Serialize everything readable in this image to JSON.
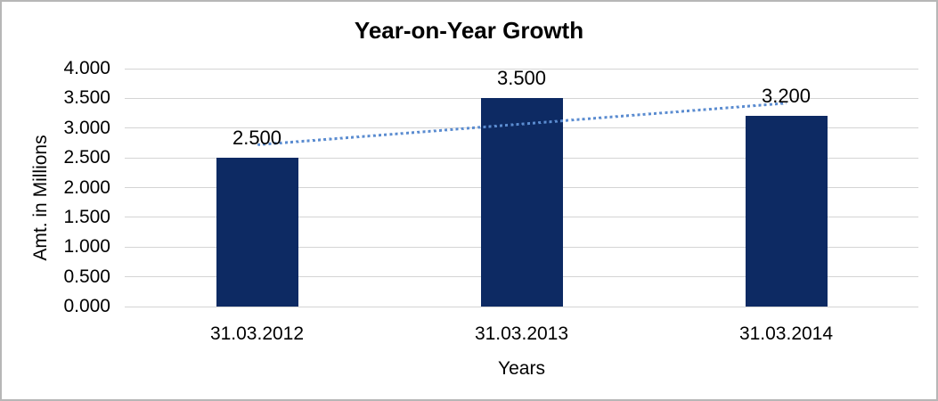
{
  "chart_data": {
    "type": "bar",
    "title": "Year-on-Year Growth",
    "xlabel": "Years",
    "ylabel": "Amt. in Millions",
    "categories": [
      "31.03.2012",
      "31.03.2013",
      "31.03.2014"
    ],
    "values": [
      2.5,
      3.5,
      3.2
    ],
    "bar_labels": [
      "2.500",
      "3.500",
      "3.200"
    ],
    "ylim": [
      0,
      4
    ],
    "ytick_values": [
      4.0,
      3.5,
      3.0,
      2.5,
      2.0,
      1.5,
      1.0,
      0.5,
      0.0
    ],
    "ytick_labels": [
      "4.000",
      "3.500",
      "3.000",
      "2.500",
      "2.000",
      "1.500",
      "1.000",
      "0.500",
      "0.000"
    ],
    "grid": true,
    "legend": "none",
    "bar_color": "#0d2a63",
    "gridline_color": "#d4d4d4",
    "text_color": "#000000",
    "frame_color": "#b7b7b7",
    "trendline": {
      "kind": "linear",
      "style": "dotted",
      "color": "#5b8cd0",
      "start_value": 2.717,
      "end_value": 3.417
    }
  }
}
